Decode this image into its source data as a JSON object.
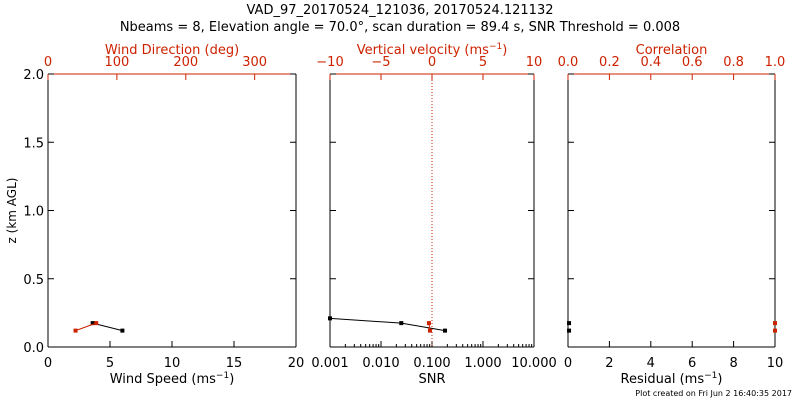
{
  "title": {
    "line1": "VAD_97_20170524_121036, 20170524.121132",
    "line2": "Nbeams = 8, Elevation angle = 70.0°, scan duration = 89.4 s, SNR Threshold = 0.008"
  },
  "footer": "Plot created on Fri Jun  2 16:40:35 2017",
  "colors": {
    "primary": "#000000",
    "secondary": "#cc2200"
  },
  "chart_data": [
    {
      "type": "line",
      "panel": "wind",
      "ylabel": "z (km AGL)",
      "ylim": [
        0.0,
        2.0
      ],
      "yticks": [
        "0.0",
        "0.5",
        "1.0",
        "1.5",
        "2.0"
      ],
      "xlabel_bottom": "Wind Speed (ms⁻¹)",
      "xlim_bottom": [
        0,
        20
      ],
      "xticks_bottom": [
        "0",
        "5",
        "10",
        "15",
        "20"
      ],
      "xlabel_top": "Wind Direction (deg)",
      "xlim_top": [
        0,
        360
      ],
      "xticks_top": [
        "0",
        "100",
        "200",
        "300"
      ],
      "series": [
        {
          "color": "black",
          "x": [
            3.6,
            6.0
          ],
          "y": [
            0.175,
            0.12
          ]
        },
        {
          "color": "red",
          "x": [
            40,
            70
          ],
          "y": [
            0.12,
            0.175
          ]
        }
      ]
    },
    {
      "type": "line",
      "panel": "snr",
      "xlabel_bottom": "SNR",
      "xscale_bottom": "log",
      "xlim_bottom": [
        0.001,
        10
      ],
      "xticks_bottom": [
        "0.001",
        "0.010",
        "0.100",
        "1.000",
        "10.000"
      ],
      "xlabel_top": "Vertical velocity (ms⁻¹)",
      "xlim_top": [
        -10,
        10
      ],
      "xticks_top": [
        "−10",
        "−5",
        "0",
        "5",
        "10"
      ],
      "ylim": [
        0.0,
        2.0
      ],
      "reference_line": {
        "axis": "top",
        "value": 0,
        "style": "dotted",
        "color": "red"
      },
      "series": [
        {
          "color": "black",
          "x": [
            0.001,
            0.025,
            0.18
          ],
          "y": [
            0.21,
            0.175,
            0.12
          ]
        },
        {
          "color": "red",
          "x": [
            -0.3,
            -0.2
          ],
          "y": [
            0.175,
            0.12
          ]
        }
      ]
    },
    {
      "type": "scatter",
      "panel": "residual",
      "xlabel_bottom": "Residual (ms⁻¹)",
      "xlim_bottom": [
        0,
        10
      ],
      "xticks_bottom": [
        "0",
        "2",
        "4",
        "6",
        "8",
        "10"
      ],
      "xlabel_top": "Correlation",
      "xlim_top": [
        0.0,
        1.0
      ],
      "xticks_top": [
        "0.0",
        "0.2",
        "0.4",
        "0.6",
        "0.8",
        "1.0"
      ],
      "ylim": [
        0.0,
        2.0
      ],
      "series": [
        {
          "color": "black",
          "x": [
            0.05,
            0.05
          ],
          "y": [
            0.175,
            0.12
          ]
        },
        {
          "color": "red",
          "x": [
            1.0,
            1.0
          ],
          "y": [
            0.175,
            0.12
          ]
        }
      ]
    }
  ]
}
